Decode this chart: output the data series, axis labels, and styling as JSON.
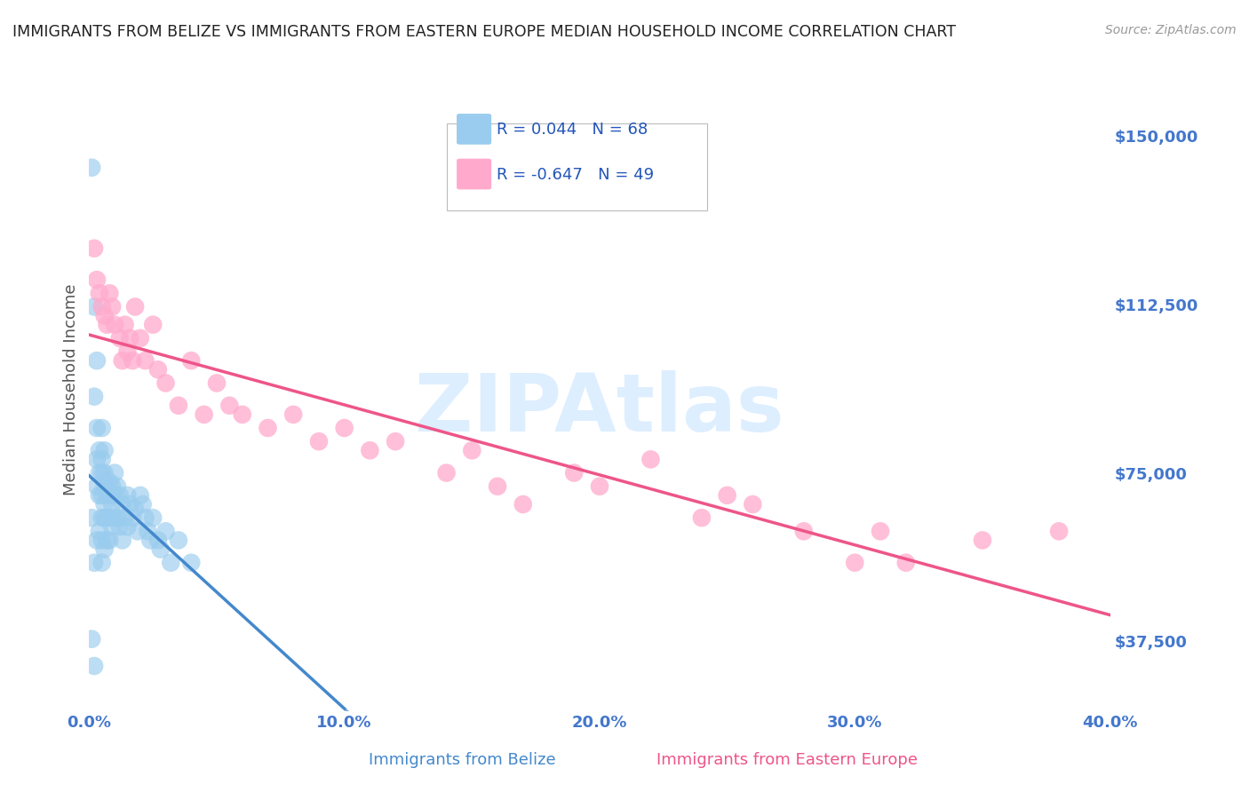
{
  "title": "IMMIGRANTS FROM BELIZE VS IMMIGRANTS FROM EASTERN EUROPE MEDIAN HOUSEHOLD INCOME CORRELATION CHART",
  "source": "Source: ZipAtlas.com",
  "ylabel": "Median Household Income",
  "xlim": [
    0.0,
    0.4
  ],
  "ylim": [
    22000,
    165000
  ],
  "yticks": [
    37500,
    75000,
    112500,
    150000
  ],
  "ytick_labels": [
    "$37,500",
    "$75,000",
    "$112,500",
    "$150,000"
  ],
  "xticks": [
    0.0,
    0.1,
    0.2,
    0.3,
    0.4
  ],
  "xtick_labels": [
    "0.0%",
    "10.0%",
    "20.0%",
    "30.0%",
    "40.0%"
  ],
  "belize_R": 0.044,
  "belize_N": 68,
  "eastern_R": -0.647,
  "eastern_N": 49,
  "belize_color": "#99ccee",
  "eastern_color": "#ffaacc",
  "belize_trend_color": "#4488cc",
  "eastern_trend_color": "#ee5588",
  "background_color": "#ffffff",
  "grid_color": "#cccccc",
  "tick_color": "#4477cc",
  "title_color": "#222222",
  "watermark_color": "#ddeeff",
  "legend_label_color": "#2255bb",
  "belize_x": [
    0.001,
    0.001,
    0.002,
    0.002,
    0.003,
    0.003,
    0.003,
    0.003,
    0.004,
    0.004,
    0.004,
    0.004,
    0.005,
    0.005,
    0.005,
    0.005,
    0.005,
    0.005,
    0.006,
    0.006,
    0.006,
    0.006,
    0.006,
    0.007,
    0.007,
    0.007,
    0.007,
    0.008,
    0.008,
    0.008,
    0.008,
    0.009,
    0.009,
    0.009,
    0.01,
    0.01,
    0.01,
    0.011,
    0.011,
    0.012,
    0.012,
    0.013,
    0.013,
    0.014,
    0.015,
    0.015,
    0.016,
    0.017,
    0.018,
    0.019,
    0.02,
    0.021,
    0.022,
    0.023,
    0.024,
    0.025,
    0.027,
    0.028,
    0.03,
    0.032,
    0.035,
    0.04,
    0.002,
    0.003,
    0.005,
    0.006,
    0.001,
    0.002
  ],
  "belize_y": [
    143000,
    65000,
    92000,
    55000,
    85000,
    78000,
    72000,
    60000,
    80000,
    75000,
    70000,
    62000,
    78000,
    75000,
    70000,
    65000,
    60000,
    55000,
    75000,
    72000,
    68000,
    65000,
    58000,
    73000,
    70000,
    65000,
    60000,
    73000,
    70000,
    65000,
    60000,
    72000,
    68000,
    63000,
    75000,
    70000,
    65000,
    72000,
    65000,
    70000,
    63000,
    68000,
    60000,
    65000,
    70000,
    63000,
    68000,
    65000,
    67000,
    62000,
    70000,
    68000,
    65000,
    62000,
    60000,
    65000,
    60000,
    58000,
    62000,
    55000,
    60000,
    55000,
    112000,
    100000,
    85000,
    80000,
    38000,
    32000
  ],
  "eastern_x": [
    0.002,
    0.003,
    0.004,
    0.005,
    0.006,
    0.007,
    0.008,
    0.009,
    0.01,
    0.012,
    0.013,
    0.014,
    0.015,
    0.016,
    0.017,
    0.018,
    0.02,
    0.022,
    0.025,
    0.027,
    0.03,
    0.035,
    0.04,
    0.045,
    0.05,
    0.055,
    0.06,
    0.07,
    0.08,
    0.09,
    0.1,
    0.11,
    0.12,
    0.14,
    0.15,
    0.16,
    0.17,
    0.19,
    0.2,
    0.22,
    0.24,
    0.25,
    0.26,
    0.28,
    0.3,
    0.31,
    0.32,
    0.35,
    0.38
  ],
  "eastern_y": [
    125000,
    118000,
    115000,
    112000,
    110000,
    108000,
    115000,
    112000,
    108000,
    105000,
    100000,
    108000,
    102000,
    105000,
    100000,
    112000,
    105000,
    100000,
    108000,
    98000,
    95000,
    90000,
    100000,
    88000,
    95000,
    90000,
    88000,
    85000,
    88000,
    82000,
    85000,
    80000,
    82000,
    75000,
    80000,
    72000,
    68000,
    75000,
    72000,
    78000,
    65000,
    70000,
    68000,
    62000,
    55000,
    62000,
    55000,
    60000,
    62000
  ]
}
